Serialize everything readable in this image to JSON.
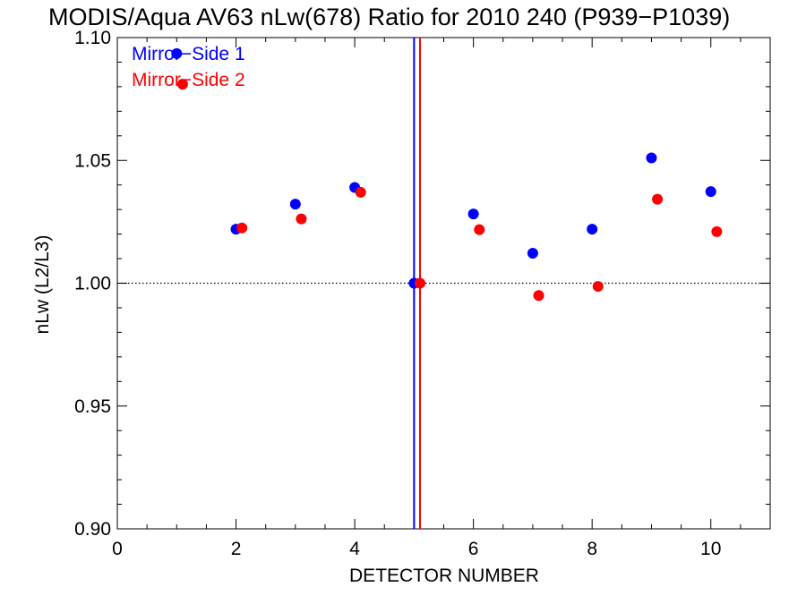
{
  "chart_data": {
    "type": "scatter",
    "title": "MODIS/Aqua AV63 nLw(678) Ratio for 2010 240 (P939−P1039)",
    "xlabel": "DETECTOR NUMBER",
    "ylabel": "nLw (L2/L3)",
    "xlim": [
      0,
      11
    ],
    "ylim": [
      0.9,
      1.1
    ],
    "xticks": [
      0,
      2,
      4,
      6,
      8,
      10
    ],
    "xtick_labels": [
      "0",
      "2",
      "4",
      "6",
      "8",
      "10"
    ],
    "yticks": [
      0.9,
      0.95,
      1.0,
      1.05,
      1.1
    ],
    "ytick_labels": [
      "0.90",
      "0.95",
      "1.00",
      "1.05",
      "1.10"
    ],
    "reference_line_y": 1.0,
    "legend_position": "top-left",
    "series": [
      {
        "name": "Mirror−Side 1",
        "color": "#0000ff",
        "x": [
          1,
          2,
          3,
          4,
          5,
          6,
          7,
          8,
          9,
          10
        ],
        "y": [
          1.0935,
          1.022,
          1.0322,
          1.039,
          1.0,
          1.0282,
          1.0122,
          1.022,
          1.051,
          1.0373
        ],
        "vline_x": 5.0
      },
      {
        "name": "Mirror−Side 2",
        "color": "#ff0000",
        "x": [
          1.1,
          2.1,
          3.1,
          4.1,
          5.1,
          6.1,
          7.1,
          8.1,
          9.1,
          10.1
        ],
        "y": [
          1.081,
          1.0225,
          1.0262,
          1.037,
          1.0,
          1.0218,
          0.995,
          0.9987,
          1.0342,
          1.021
        ],
        "vline_x": 5.1
      }
    ]
  }
}
